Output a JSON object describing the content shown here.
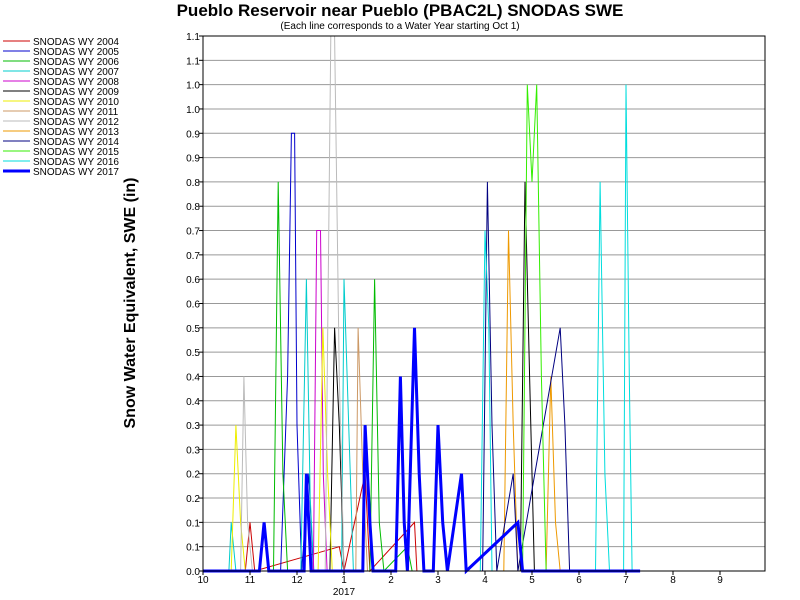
{
  "chart_data": {
    "type": "line",
    "title": "Pueblo Reservoir near Pueblo (PBAC2L) SNODAS SWE",
    "subtitle": "(Each line corresponds to a Water Year starting Oct 1)",
    "ylabel": "Snow Water Equivalent, SWE (in)",
    "xlabel": "",
    "x_ticks": [
      "10",
      "11",
      "12",
      "1",
      "2",
      "3",
      "4",
      "5",
      "6",
      "7",
      "8",
      "9"
    ],
    "x_year_label": "2017",
    "y_ticks": [
      "0.0",
      "0.1",
      "0.1",
      "0.2",
      "0.2",
      "0.3",
      "0.3",
      "0.4",
      "0.4",
      "0.5",
      "0.5",
      "0.6",
      "0.6",
      "0.7",
      "0.7",
      "0.8",
      "0.8",
      "0.9",
      "0.9",
      "1.0",
      "1.0",
      "1.1",
      "1.1"
    ],
    "ylim": [
      0,
      1.1
    ],
    "grid": true,
    "legend_position": "left",
    "series": [
      {
        "name": "SNODAS WY 2004",
        "color": "#cc0000",
        "width": 1,
        "points": [
          [
            10.0,
            0
          ],
          [
            10.9,
            0
          ],
          [
            11.0,
            0.1
          ],
          [
            11.1,
            0
          ],
          [
            12.9,
            0.05
          ],
          [
            13.0,
            0
          ],
          [
            13.45,
            0.2
          ],
          [
            13.55,
            0
          ],
          [
            14.5,
            0.1
          ],
          [
            14.55,
            0
          ],
          [
            15.8,
            0
          ]
        ]
      },
      {
        "name": "SNODAS WY 2005",
        "color": "#0000cc",
        "width": 1,
        "points": [
          [
            10.0,
            0
          ],
          [
            11.65,
            0
          ],
          [
            11.8,
            0.4
          ],
          [
            11.88,
            0.9
          ],
          [
            11.95,
            0.9
          ],
          [
            12.0,
            0.3
          ],
          [
            12.1,
            0
          ],
          [
            12.25,
            0.2
          ],
          [
            12.35,
            0
          ],
          [
            14.6,
            0
          ]
        ]
      },
      {
        "name": "SNODAS WY 2006",
        "color": "#00bb00",
        "width": 1,
        "points": [
          [
            10.0,
            0
          ],
          [
            11.5,
            0
          ],
          [
            11.6,
            0.8
          ],
          [
            11.7,
            0.2
          ],
          [
            11.8,
            0
          ],
          [
            13.55,
            0
          ],
          [
            13.65,
            0.6
          ],
          [
            13.75,
            0.1
          ],
          [
            13.85,
            0
          ],
          [
            14.35,
            0.05
          ],
          [
            14.45,
            0
          ],
          [
            15.1,
            0
          ]
        ]
      },
      {
        "name": "SNODAS WY 2007",
        "color": "#00cccc",
        "width": 1,
        "points": [
          [
            10.0,
            0
          ],
          [
            10.55,
            0
          ],
          [
            10.6,
            0.1
          ],
          [
            10.7,
            0
          ],
          [
            12.08,
            0
          ],
          [
            12.2,
            0.6
          ],
          [
            12.28,
            0.15
          ],
          [
            12.36,
            0
          ],
          [
            12.95,
            0
          ],
          [
            13.0,
            0.6
          ],
          [
            13.1,
            0.3
          ],
          [
            13.2,
            0
          ],
          [
            15.15,
            0
          ]
        ]
      },
      {
        "name": "SNODAS WY 2008",
        "color": "#cc00cc",
        "width": 1,
        "points": [
          [
            10.0,
            0
          ],
          [
            12.35,
            0
          ],
          [
            12.42,
            0.7
          ],
          [
            12.5,
            0.7
          ],
          [
            12.56,
            0.2
          ],
          [
            12.64,
            0
          ],
          [
            15.3,
            0
          ]
        ]
      },
      {
        "name": "SNODAS WY 2009",
        "color": "#000000",
        "width": 1,
        "points": [
          [
            10.0,
            0
          ],
          [
            12.7,
            0
          ],
          [
            12.8,
            0.5
          ],
          [
            12.9,
            0.3
          ],
          [
            13.0,
            0
          ],
          [
            16.75,
            0
          ],
          [
            16.85,
            0.8
          ],
          [
            16.95,
            0.4
          ],
          [
            17.05,
            0
          ],
          [
            18.9,
            0
          ]
        ]
      },
      {
        "name": "SNODAS WY 2010",
        "color": "#eeee00",
        "width": 1,
        "points": [
          [
            10.0,
            0
          ],
          [
            10.6,
            0
          ],
          [
            10.7,
            0.3
          ],
          [
            10.8,
            0.1
          ],
          [
            10.9,
            0
          ],
          [
            12.45,
            0
          ],
          [
            12.55,
            0.5
          ],
          [
            12.65,
            0.2
          ],
          [
            12.75,
            0
          ],
          [
            15.3,
            0
          ]
        ]
      },
      {
        "name": "SNODAS WY 2011",
        "color": "#cc9966",
        "width": 1,
        "points": [
          [
            10.0,
            0
          ],
          [
            13.25,
            0
          ],
          [
            13.3,
            0.5
          ],
          [
            13.4,
            0.2
          ],
          [
            13.5,
            0
          ],
          [
            15.05,
            0
          ]
        ]
      },
      {
        "name": "SNODAS WY 2012",
        "color": "#bbbbbb",
        "width": 1,
        "points": [
          [
            10.0,
            0
          ],
          [
            10.8,
            0
          ],
          [
            10.87,
            0.4
          ],
          [
            10.95,
            0.1
          ],
          [
            11.05,
            0
          ],
          [
            12.6,
            0
          ],
          [
            12.72,
            1.1
          ],
          [
            12.8,
            1.1
          ],
          [
            12.9,
            0.4
          ],
          [
            13.0,
            0
          ],
          [
            15.15,
            0
          ]
        ]
      },
      {
        "name": "SNODAS WY 2013",
        "color": "#ee9900",
        "width": 1,
        "points": [
          [
            10.0,
            0
          ],
          [
            16.4,
            0
          ],
          [
            16.5,
            0.7
          ],
          [
            16.6,
            0.3
          ],
          [
            16.7,
            0
          ],
          [
            17.3,
            0
          ],
          [
            17.4,
            0.4
          ],
          [
            17.5,
            0.1
          ],
          [
            17.6,
            0
          ],
          [
            18.9,
            0
          ]
        ]
      },
      {
        "name": "SNODAS WY 2014",
        "color": "#000080",
        "width": 1,
        "points": [
          [
            10.0,
            0
          ],
          [
            15.95,
            0
          ],
          [
            16.05,
            0.8
          ],
          [
            16.15,
            0.3
          ],
          [
            16.25,
            0
          ],
          [
            16.6,
            0.2
          ],
          [
            16.7,
            0
          ],
          [
            17.6,
            0.5
          ],
          [
            17.7,
            0.3
          ],
          [
            17.8,
            0
          ],
          [
            18.65,
            0
          ]
        ]
      },
      {
        "name": "SNODAS WY 2015",
        "color": "#33ee00",
        "width": 1,
        "points": [
          [
            10.0,
            0
          ],
          [
            16.8,
            0
          ],
          [
            16.9,
            1.0
          ],
          [
            17.0,
            0.8
          ],
          [
            17.1,
            1.0
          ],
          [
            17.2,
            0.4
          ],
          [
            17.3,
            0
          ],
          [
            18.4,
            0
          ]
        ]
      },
      {
        "name": "SNODAS WY 2016",
        "color": "#00dddd",
        "width": 1,
        "points": [
          [
            10.0,
            0
          ],
          [
            15.9,
            0
          ],
          [
            16.0,
            0.7
          ],
          [
            16.08,
            0.5
          ],
          [
            16.15,
            0
          ],
          [
            18.35,
            0
          ],
          [
            18.45,
            0.8
          ],
          [
            18.55,
            0.2
          ],
          [
            18.65,
            0
          ],
          [
            18.95,
            0
          ],
          [
            19.0,
            1.0
          ],
          [
            19.07,
            0.4
          ],
          [
            19.13,
            0
          ]
        ]
      },
      {
        "name": "SNODAS WY 2017",
        "color": "#0000ff",
        "width": 3,
        "points": [
          [
            10.0,
            0
          ],
          [
            11.2,
            0
          ],
          [
            11.3,
            0.1
          ],
          [
            11.4,
            0
          ],
          [
            12.15,
            0
          ],
          [
            12.2,
            0.2
          ],
          [
            12.3,
            0
          ],
          [
            13.4,
            0
          ],
          [
            13.45,
            0.3
          ],
          [
            13.55,
            0.1
          ],
          [
            13.62,
            0
          ],
          [
            14.1,
            0
          ],
          [
            14.2,
            0.4
          ],
          [
            14.28,
            0.1
          ],
          [
            14.35,
            0
          ],
          [
            14.5,
            0.5
          ],
          [
            14.6,
            0.2
          ],
          [
            14.7,
            0
          ],
          [
            14.9,
            0
          ],
          [
            15.0,
            0.3
          ],
          [
            15.1,
            0.1
          ],
          [
            15.2,
            0
          ],
          [
            15.5,
            0.2
          ],
          [
            15.6,
            0
          ],
          [
            16.7,
            0.1
          ],
          [
            16.8,
            0
          ],
          [
            19.3,
            0
          ]
        ]
      }
    ]
  }
}
